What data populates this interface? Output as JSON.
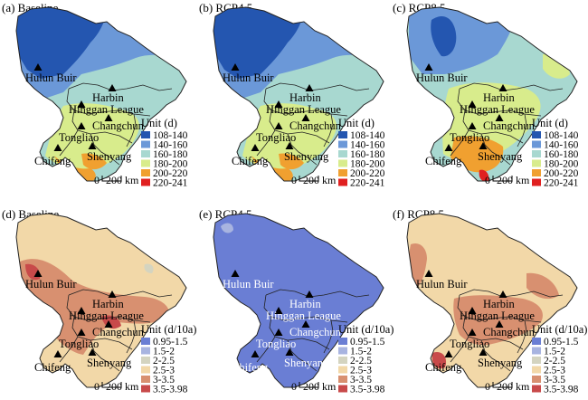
{
  "panels": [
    {
      "id": "a",
      "title": "(a) Baseline",
      "legend_set": "days"
    },
    {
      "id": "b",
      "title": "(b) RCP4.5",
      "legend_set": "days"
    },
    {
      "id": "c",
      "title": "(c) RCP8.5",
      "legend_set": "days"
    },
    {
      "id": "d",
      "title": "(d) Baseline",
      "legend_set": "trend"
    },
    {
      "id": "e",
      "title": "(e) RCP4.5",
      "legend_set": "trend"
    },
    {
      "id": "f",
      "title": "(f) RCP8.5",
      "legend_set": "trend"
    }
  ],
  "legends": {
    "days": {
      "title": "Unit (d)",
      "classes": [
        "108-140",
        "140-160",
        "160-180",
        "180-200",
        "200-220",
        "220-241"
      ],
      "colors": [
        "#2456b0",
        "#6b98d8",
        "#a8d8d0",
        "#d8ec8c",
        "#f0a030",
        "#e02020"
      ]
    },
    "trend": {
      "title": "Unit (d/10a)",
      "classes": [
        "0.95-1.5",
        "1.5-2",
        "2-2.5",
        "2.5-3",
        "3-3.5",
        "3.5-3.98"
      ],
      "colors": [
        "#6a7ed4",
        "#a8b4e0",
        "#d4d4c0",
        "#f2d8a8",
        "#d89070",
        "#c84a4a"
      ]
    }
  },
  "cities": [
    "Hulun Buir",
    "Harbin",
    "Hinggan League",
    "Changchun",
    "Tongliao",
    "Shenyang",
    "Chifeng"
  ],
  "scale_bar": {
    "zero": "0",
    "label": "200 km"
  }
}
